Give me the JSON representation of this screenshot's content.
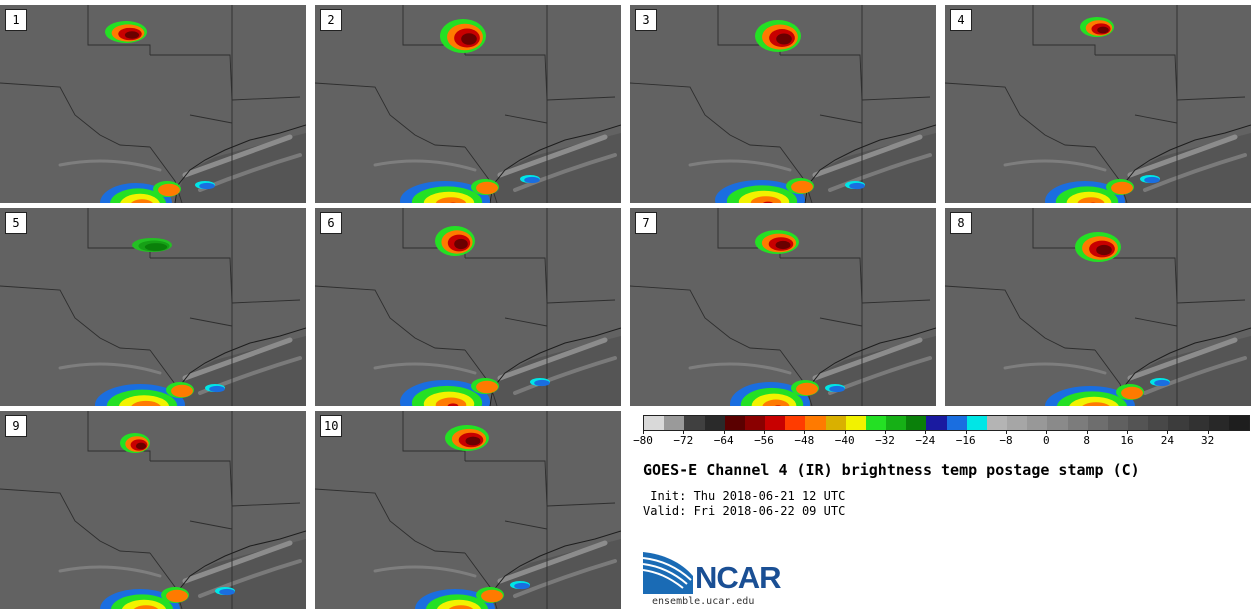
{
  "panels": [
    {
      "label": "1"
    },
    {
      "label": "2"
    },
    {
      "label": "3"
    },
    {
      "label": "4"
    },
    {
      "label": "5"
    },
    {
      "label": "6"
    },
    {
      "label": "7"
    },
    {
      "label": "8"
    },
    {
      "label": "9"
    },
    {
      "label": "10"
    }
  ],
  "colorbar": {
    "tick_labels": [
      "−80",
      "−72",
      "−64",
      "−56",
      "−48",
      "−40",
      "−32",
      "−24",
      "−16",
      "−8",
      "0",
      "8",
      "16",
      "24",
      "32"
    ],
    "colors": [
      "#d9d9d9",
      "#9a9a9a",
      "#404040",
      "#2a2a2a",
      "#5a0000",
      "#8a0000",
      "#c80000",
      "#ff3c00",
      "#ff7a00",
      "#d9b000",
      "#f2f200",
      "#24e024",
      "#16b016",
      "#0a800a",
      "#1a1aa0",
      "#1a6ee0",
      "#00e6e6",
      "#b4b4b4",
      "#a6a6a6",
      "#989898",
      "#8a8a8a",
      "#7c7c7c",
      "#6e6e6e",
      "#606060",
      "#545454",
      "#484848",
      "#3c3c3c",
      "#323232",
      "#282828",
      "#1e1e1e"
    ]
  },
  "title": "GOES-E Channel 4 (IR) brightness temp postage stamp (C)",
  "init_line": " Init: Thu 2018-06-21 12 UTC",
  "valid_line": "Valid: Fri 2018-06-22 09 UTC",
  "logo": {
    "text": "NCAR",
    "url": "ensemble.ucar.edu"
  }
}
